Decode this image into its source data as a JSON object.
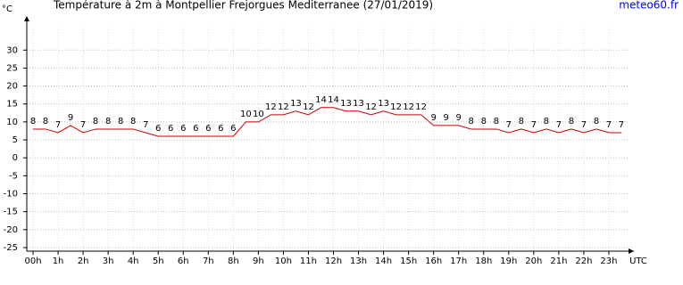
{
  "chart_data": {
    "type": "line",
    "title": "Température à 2m à Montpellier Frejorgues Mediterranee (27/01/2019)",
    "y_label": "°C",
    "x_label": "UTC",
    "source": "meteo60.fr",
    "x": [
      0,
      0.5,
      1,
      1.5,
      2,
      2.5,
      3,
      3.5,
      4,
      4.5,
      5,
      5.5,
      6,
      6.5,
      7,
      7.5,
      8,
      8.5,
      9,
      9.5,
      10,
      10.5,
      11,
      11.5,
      12,
      12.5,
      13,
      13.5,
      14,
      14.5,
      15,
      15.5,
      16,
      16.5,
      17,
      17.5,
      18,
      18.5,
      19,
      19.5,
      20,
      20.5,
      21,
      21.5,
      22,
      22.5,
      23,
      23.5
    ],
    "series": [
      {
        "name": "Température",
        "color": "#cc0000",
        "values": [
          8,
          8,
          7,
          9,
          7,
          8,
          8,
          8,
          8,
          7,
          6,
          6,
          6,
          6,
          6,
          6,
          6,
          10,
          10,
          12,
          12,
          13,
          12,
          14,
          14,
          13,
          13,
          12,
          13,
          12,
          12,
          12,
          9,
          9,
          9,
          8,
          8,
          8,
          7,
          8,
          7,
          8,
          7,
          8,
          7,
          8,
          7,
          7
        ]
      }
    ],
    "xlim": [
      -0.25,
      24
    ],
    "ylim": [
      -26,
      38.5
    ],
    "yticks": [
      -25,
      -20,
      -15,
      -10,
      -5,
      0,
      5,
      10,
      15,
      20,
      25,
      30
    ],
    "xticks": [
      {
        "value": 0,
        "label": "00h"
      },
      {
        "value": 1,
        "label": "1h"
      },
      {
        "value": 2,
        "label": "2h"
      },
      {
        "value": 3,
        "label": "3h"
      },
      {
        "value": 4,
        "label": "4h"
      },
      {
        "value": 5,
        "label": "5h"
      },
      {
        "value": 6,
        "label": "6h"
      },
      {
        "value": 7,
        "label": "7h"
      },
      {
        "value": 8,
        "label": "8h"
      },
      {
        "value": 9,
        "label": "9h"
      },
      {
        "value": 10,
        "label": "10h"
      },
      {
        "value": 11,
        "label": "11h"
      },
      {
        "value": 12,
        "label": "12h"
      },
      {
        "value": 13,
        "label": "13h"
      },
      {
        "value": 14,
        "label": "14h"
      },
      {
        "value": 15,
        "label": "15h"
      },
      {
        "value": 16,
        "label": "16h"
      },
      {
        "value": 17,
        "label": "17h"
      },
      {
        "value": 18,
        "label": "18h"
      },
      {
        "value": 19,
        "label": "19h"
      },
      {
        "value": 20,
        "label": "20h"
      },
      {
        "value": 21,
        "label": "21h"
      },
      {
        "value": 22,
        "label": "22h"
      },
      {
        "value": 23,
        "label": "23h"
      }
    ],
    "grid": true
  }
}
